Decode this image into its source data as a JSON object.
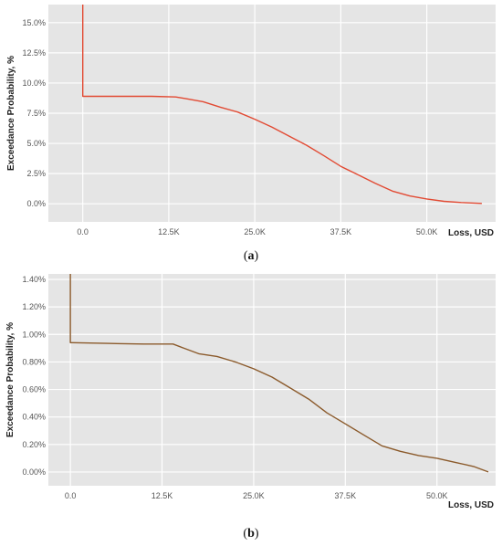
{
  "chart_data": [
    {
      "type": "line",
      "label": "a",
      "xlabel": "Loss, USD",
      "ylabel": "Exceedance Probability, %",
      "xlim": [
        -5000,
        60000
      ],
      "ylim": [
        -1.5,
        16.5
      ],
      "x_ticks": [
        0,
        12500,
        25000,
        37500,
        50000
      ],
      "x_tick_labels": [
        "0.0",
        "12.5K",
        "25.0K",
        "37.5K",
        "50.0K"
      ],
      "y_ticks": [
        0,
        2.5,
        5,
        7.5,
        10,
        12.5,
        15
      ],
      "y_tick_labels": [
        "0.0%",
        "2.5%",
        "5.0%",
        "7.5%",
        "10.0%",
        "12.5%",
        "15.0%"
      ],
      "grid": true,
      "background": "#e5e5e5",
      "line_color": "#e24a33",
      "x": [
        0,
        0,
        300,
        5000,
        10000,
        13500,
        15000,
        17500,
        20000,
        22500,
        25000,
        27500,
        30000,
        32500,
        35000,
        37500,
        40000,
        42500,
        45000,
        47500,
        50000,
        52500,
        55000,
        58000
      ],
      "y": [
        17.0,
        8.9,
        8.9,
        8.9,
        8.9,
        8.85,
        8.7,
        8.45,
        8.0,
        7.6,
        7.0,
        6.35,
        5.6,
        4.85,
        4.0,
        3.1,
        2.4,
        1.7,
        1.05,
        0.65,
        0.4,
        0.2,
        0.1,
        0.03
      ]
    },
    {
      "type": "line",
      "label": "b",
      "xlabel": "Loss, USD",
      "ylabel": "Exceedance Probability, %",
      "xlim": [
        -3000,
        58000
      ],
      "ylim": [
        -0.1,
        1.44
      ],
      "x_ticks": [
        0,
        12500,
        25000,
        37500,
        50000
      ],
      "x_tick_labels": [
        "0.0",
        "12.5K",
        "25.0K",
        "37.5K",
        "50.0K"
      ],
      "y_ticks": [
        0,
        0.2,
        0.4,
        0.6,
        0.8,
        1.0,
        1.2,
        1.4
      ],
      "y_tick_labels": [
        "0.00%",
        "0.20%",
        "0.40%",
        "0.60%",
        "0.80%",
        "1.00%",
        "1.20%",
        "1.40%"
      ],
      "grid": true,
      "background": "#e5e5e5",
      "line_color": "#8b5a2b",
      "x": [
        0,
        0,
        300,
        5000,
        10000,
        14000,
        15500,
        17500,
        20000,
        22500,
        25000,
        27500,
        30000,
        32500,
        35000,
        37500,
        40000,
        42500,
        45000,
        47500,
        50000,
        52500,
        55000,
        57000
      ],
      "y": [
        1.5,
        0.94,
        0.94,
        0.935,
        0.93,
        0.93,
        0.9,
        0.86,
        0.84,
        0.8,
        0.75,
        0.69,
        0.61,
        0.53,
        0.43,
        0.35,
        0.27,
        0.19,
        0.15,
        0.12,
        0.1,
        0.07,
        0.04,
        0.0
      ]
    }
  ],
  "captions": {
    "a": "(a)",
    "b": "(b)"
  }
}
